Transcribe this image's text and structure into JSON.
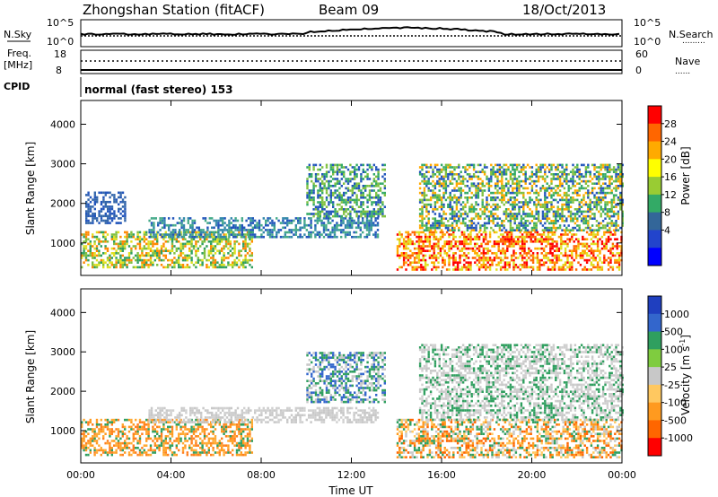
{
  "header": {
    "station": "Zhongshan Station (fitACF)",
    "beam": "Beam 09",
    "date": "18/Oct/2013"
  },
  "noise_panel": {
    "left_label": "N.Sky",
    "right_label": "N.Search",
    "right_legend": ".........",
    "ticks": [
      "10^5",
      "10^0"
    ]
  },
  "freq_panel": {
    "left_label_1": "Freq.",
    "left_label_2": "[MHz]",
    "left_ticks": [
      "18",
      "8"
    ],
    "right_label": "Nave",
    "right_legend": "......",
    "right_ticks": [
      "60",
      "0"
    ]
  },
  "cpid": {
    "label": "CPID",
    "text": "normal (fast stereo) 153"
  },
  "chart_data": [
    {
      "type": "heatmap",
      "name": "power",
      "ylabel": "Slant Range [km]",
      "yticks": [
        "4000",
        "3000",
        "2000",
        "1000"
      ],
      "ylim": [
        180,
        4600
      ],
      "xlim_hours": [
        0,
        24
      ],
      "colorbar_label": "Power [dB]",
      "colorbar_ticks": [
        "28",
        "24",
        "20",
        "16",
        "12",
        "8",
        "4"
      ],
      "colorbar_colors": [
        "#ff0000",
        "#ff6600",
        "#ffaa00",
        "#ffff00",
        "#99cc33",
        "#33aa66",
        "#336699",
        "#2244cc",
        "#0000ff"
      ],
      "echo_regions": [
        {
          "t0": 0.0,
          "t1": 7.6,
          "r0": 400,
          "r1": 1300,
          "colors": [
            "#e0e020",
            "#80c040",
            "#ff8800",
            "#2f9f5f"
          ]
        },
        {
          "t0": 0.2,
          "t1": 2.0,
          "r0": 1500,
          "r1": 2300,
          "colors": [
            "#2255bb",
            "#3366aa"
          ]
        },
        {
          "t0": 3.0,
          "t1": 13.2,
          "r0": 1150,
          "r1": 1650,
          "colors": [
            "#2255bb",
            "#3388aa",
            "#44aa88"
          ]
        },
        {
          "t0": 10.0,
          "t1": 13.5,
          "r0": 1700,
          "r1": 3000,
          "colors": [
            "#2255bb",
            "#33aa66",
            "#80c040"
          ]
        },
        {
          "t0": 14.0,
          "t1": 24.0,
          "r0": 300,
          "r1": 1300,
          "colors": [
            "#ff0000",
            "#ff6600",
            "#ffaa00",
            "#e0e020"
          ]
        },
        {
          "t0": 15.0,
          "t1": 24.0,
          "r0": 1300,
          "r1": 3000,
          "colors": [
            "#2255bb",
            "#33aa66",
            "#80c040",
            "#ffaa00"
          ]
        }
      ]
    },
    {
      "type": "heatmap",
      "name": "velocity",
      "ylabel": "Slant Range [km]",
      "yticks": [
        "4000",
        "3000",
        "2000",
        "1000"
      ],
      "ylim": [
        180,
        4600
      ],
      "xlabel": "Time UT",
      "xticks": [
        "00:00",
        "04:00",
        "08:00",
        "12:00",
        "16:00",
        "20:00",
        "00:00"
      ],
      "xlim_hours": [
        0,
        24
      ],
      "colorbar_label": "Velocity [m s",
      "colorbar_exp": "-1",
      "colorbar_ticks": [
        "1000",
        "500",
        "100",
        "25",
        "-25",
        "-100",
        "-500",
        "-1000"
      ],
      "colorbar_colors": [
        "#1f3fbf",
        "#3366cc",
        "#2f9f5f",
        "#7fcc3f",
        "#c8c8c8",
        "#ffc860",
        "#ff9a1f",
        "#ff6600",
        "#ff0000"
      ],
      "echo_regions": [
        {
          "t0": 0.0,
          "t1": 7.6,
          "r0": 400,
          "r1": 1300,
          "colors": [
            "#ff9a1f",
            "#ffaa33",
            "#2f9f5f",
            "#ff7f1f"
          ]
        },
        {
          "t0": 3.0,
          "t1": 13.2,
          "r0": 1200,
          "r1": 1600,
          "colors": [
            "#c8c8c8",
            "#d0d0d0"
          ]
        },
        {
          "t0": 10.0,
          "t1": 13.5,
          "r0": 1700,
          "r1": 3000,
          "colors": [
            "#2f9f5f",
            "#3366cc",
            "#c8c8c8"
          ]
        },
        {
          "t0": 14.0,
          "t1": 24.0,
          "r0": 300,
          "r1": 1300,
          "colors": [
            "#ff9a1f",
            "#ff6600",
            "#2f9f5f",
            "#c8c8c8",
            "#ffc860"
          ]
        },
        {
          "t0": 15.0,
          "t1": 24.0,
          "r0": 1300,
          "r1": 3200,
          "colors": [
            "#c8c8c8",
            "#2f9f5f",
            "#d0d0d0"
          ]
        }
      ]
    }
  ]
}
